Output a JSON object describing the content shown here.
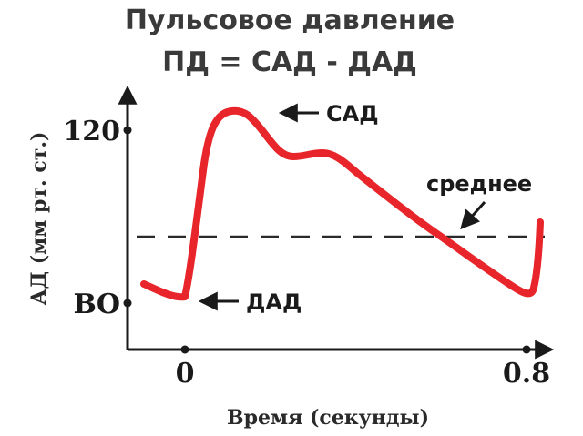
{
  "title": {
    "line1": "Пульсовое давление",
    "line2": "ПД = САД - ДАД"
  },
  "axes": {
    "ylabel": "АД (мм рт. ст.)",
    "xlabel": "Время (секунды)",
    "y_ticks": [
      "120",
      "ВО"
    ],
    "x_ticks": [
      "0",
      "0.8"
    ]
  },
  "annotations": {
    "systolic": "САД",
    "diastolic": "ДАД",
    "mean": "среднее"
  },
  "colors": {
    "curve": "#e8252a",
    "axis": "#1a1a1a",
    "dashed": "#2a2a2a"
  }
}
